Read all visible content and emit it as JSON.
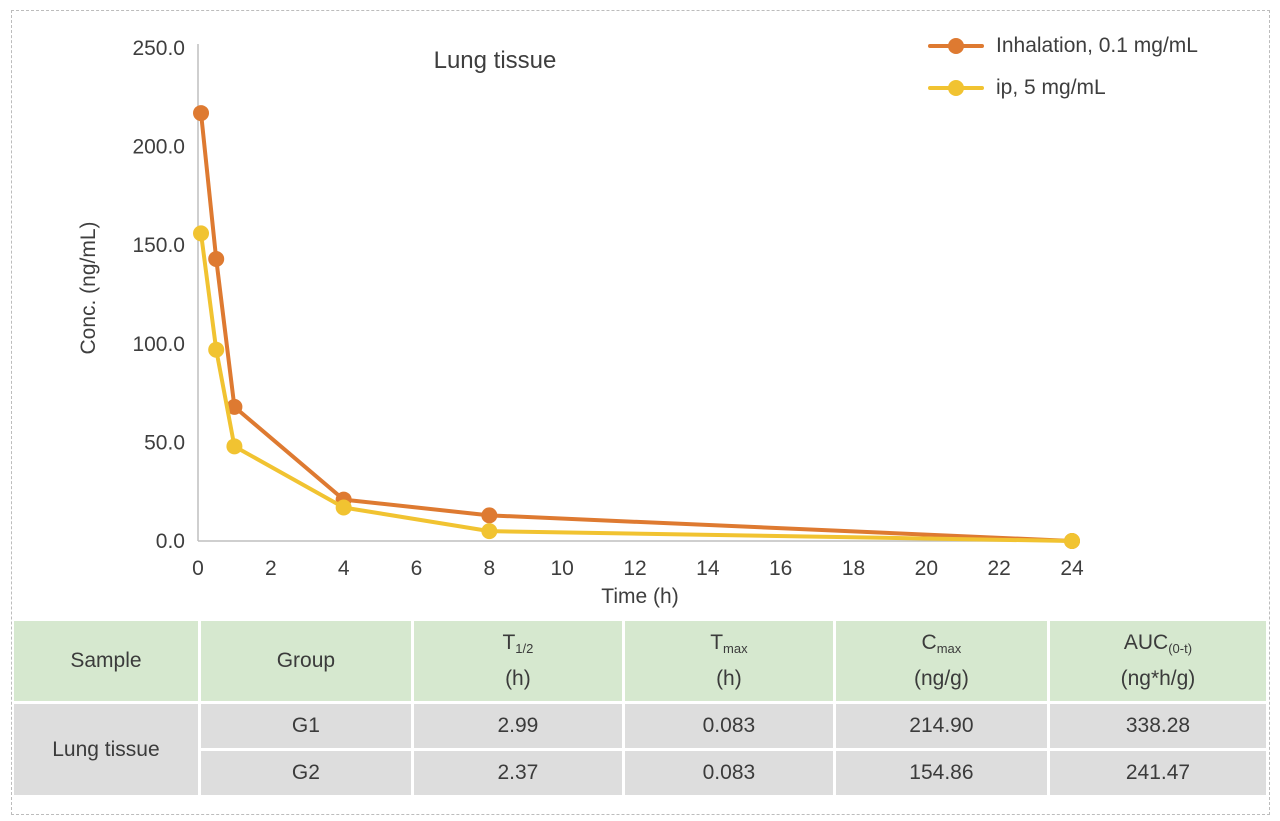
{
  "chart": {
    "title": "Lung tissue",
    "x_axis_label": "Time (h)",
    "y_axis_label": "Conc. (ng/mL)",
    "x_ticks": [
      "0",
      "2",
      "4",
      "6",
      "8",
      "10",
      "12",
      "14",
      "16",
      "18",
      "20",
      "22",
      "24"
    ],
    "y_ticks": [
      "0.0",
      "50.0",
      "100.0",
      "150.0",
      "200.0",
      "250.0"
    ]
  },
  "chart_data": {
    "type": "line",
    "title": "Lung tissue",
    "xlabel": "Time (h)",
    "ylabel": "Conc. (ng/mL)",
    "xlim": [
      0,
      24
    ],
    "ylim": [
      0,
      250
    ],
    "grid": false,
    "legend_position": "top-right",
    "x": [
      0.083,
      0.5,
      1,
      4,
      8,
      24
    ],
    "series": [
      {
        "name": "Inhalation, 0.1 mg/mL",
        "color": "#de7a31",
        "values": [
          217,
          143,
          68,
          21,
          13,
          0
        ]
      },
      {
        "name": "ip, 5 mg/mL",
        "color": "#f1c331",
        "values": [
          156,
          97,
          48,
          17,
          5,
          0
        ]
      }
    ]
  },
  "table": {
    "headers": [
      {
        "main": "Sample",
        "sub": "",
        "unit": ""
      },
      {
        "main": "Group",
        "sub": "",
        "unit": ""
      },
      {
        "main": "T",
        "sub": "1/2",
        "unit": "(h)"
      },
      {
        "main": "T",
        "sub": "max",
        "unit": "(h)"
      },
      {
        "main": "C",
        "sub": "max",
        "unit": "(ng/g)"
      },
      {
        "main": "AUC",
        "sub": "(0-t)",
        "unit": "(ng*h/g)"
      }
    ],
    "sample_label": "Lung tissue",
    "rows": [
      {
        "group": "G1",
        "t_half": "2.99",
        "tmax": "0.083",
        "cmax": "214.90",
        "auc": "338.28"
      },
      {
        "group": "G2",
        "t_half": "2.37",
        "tmax": "0.083",
        "cmax": "154.86",
        "auc": "241.47"
      }
    ]
  },
  "colors": {
    "series_inhalation": "#de7a31",
    "series_ip": "#f1c331",
    "axis_line": "#bfbfbf",
    "text": "#3e3e3e",
    "table_header_bg": "#d6e8cf",
    "table_row_bg": "#dddddd",
    "frame_border": "#bcbcbc"
  }
}
